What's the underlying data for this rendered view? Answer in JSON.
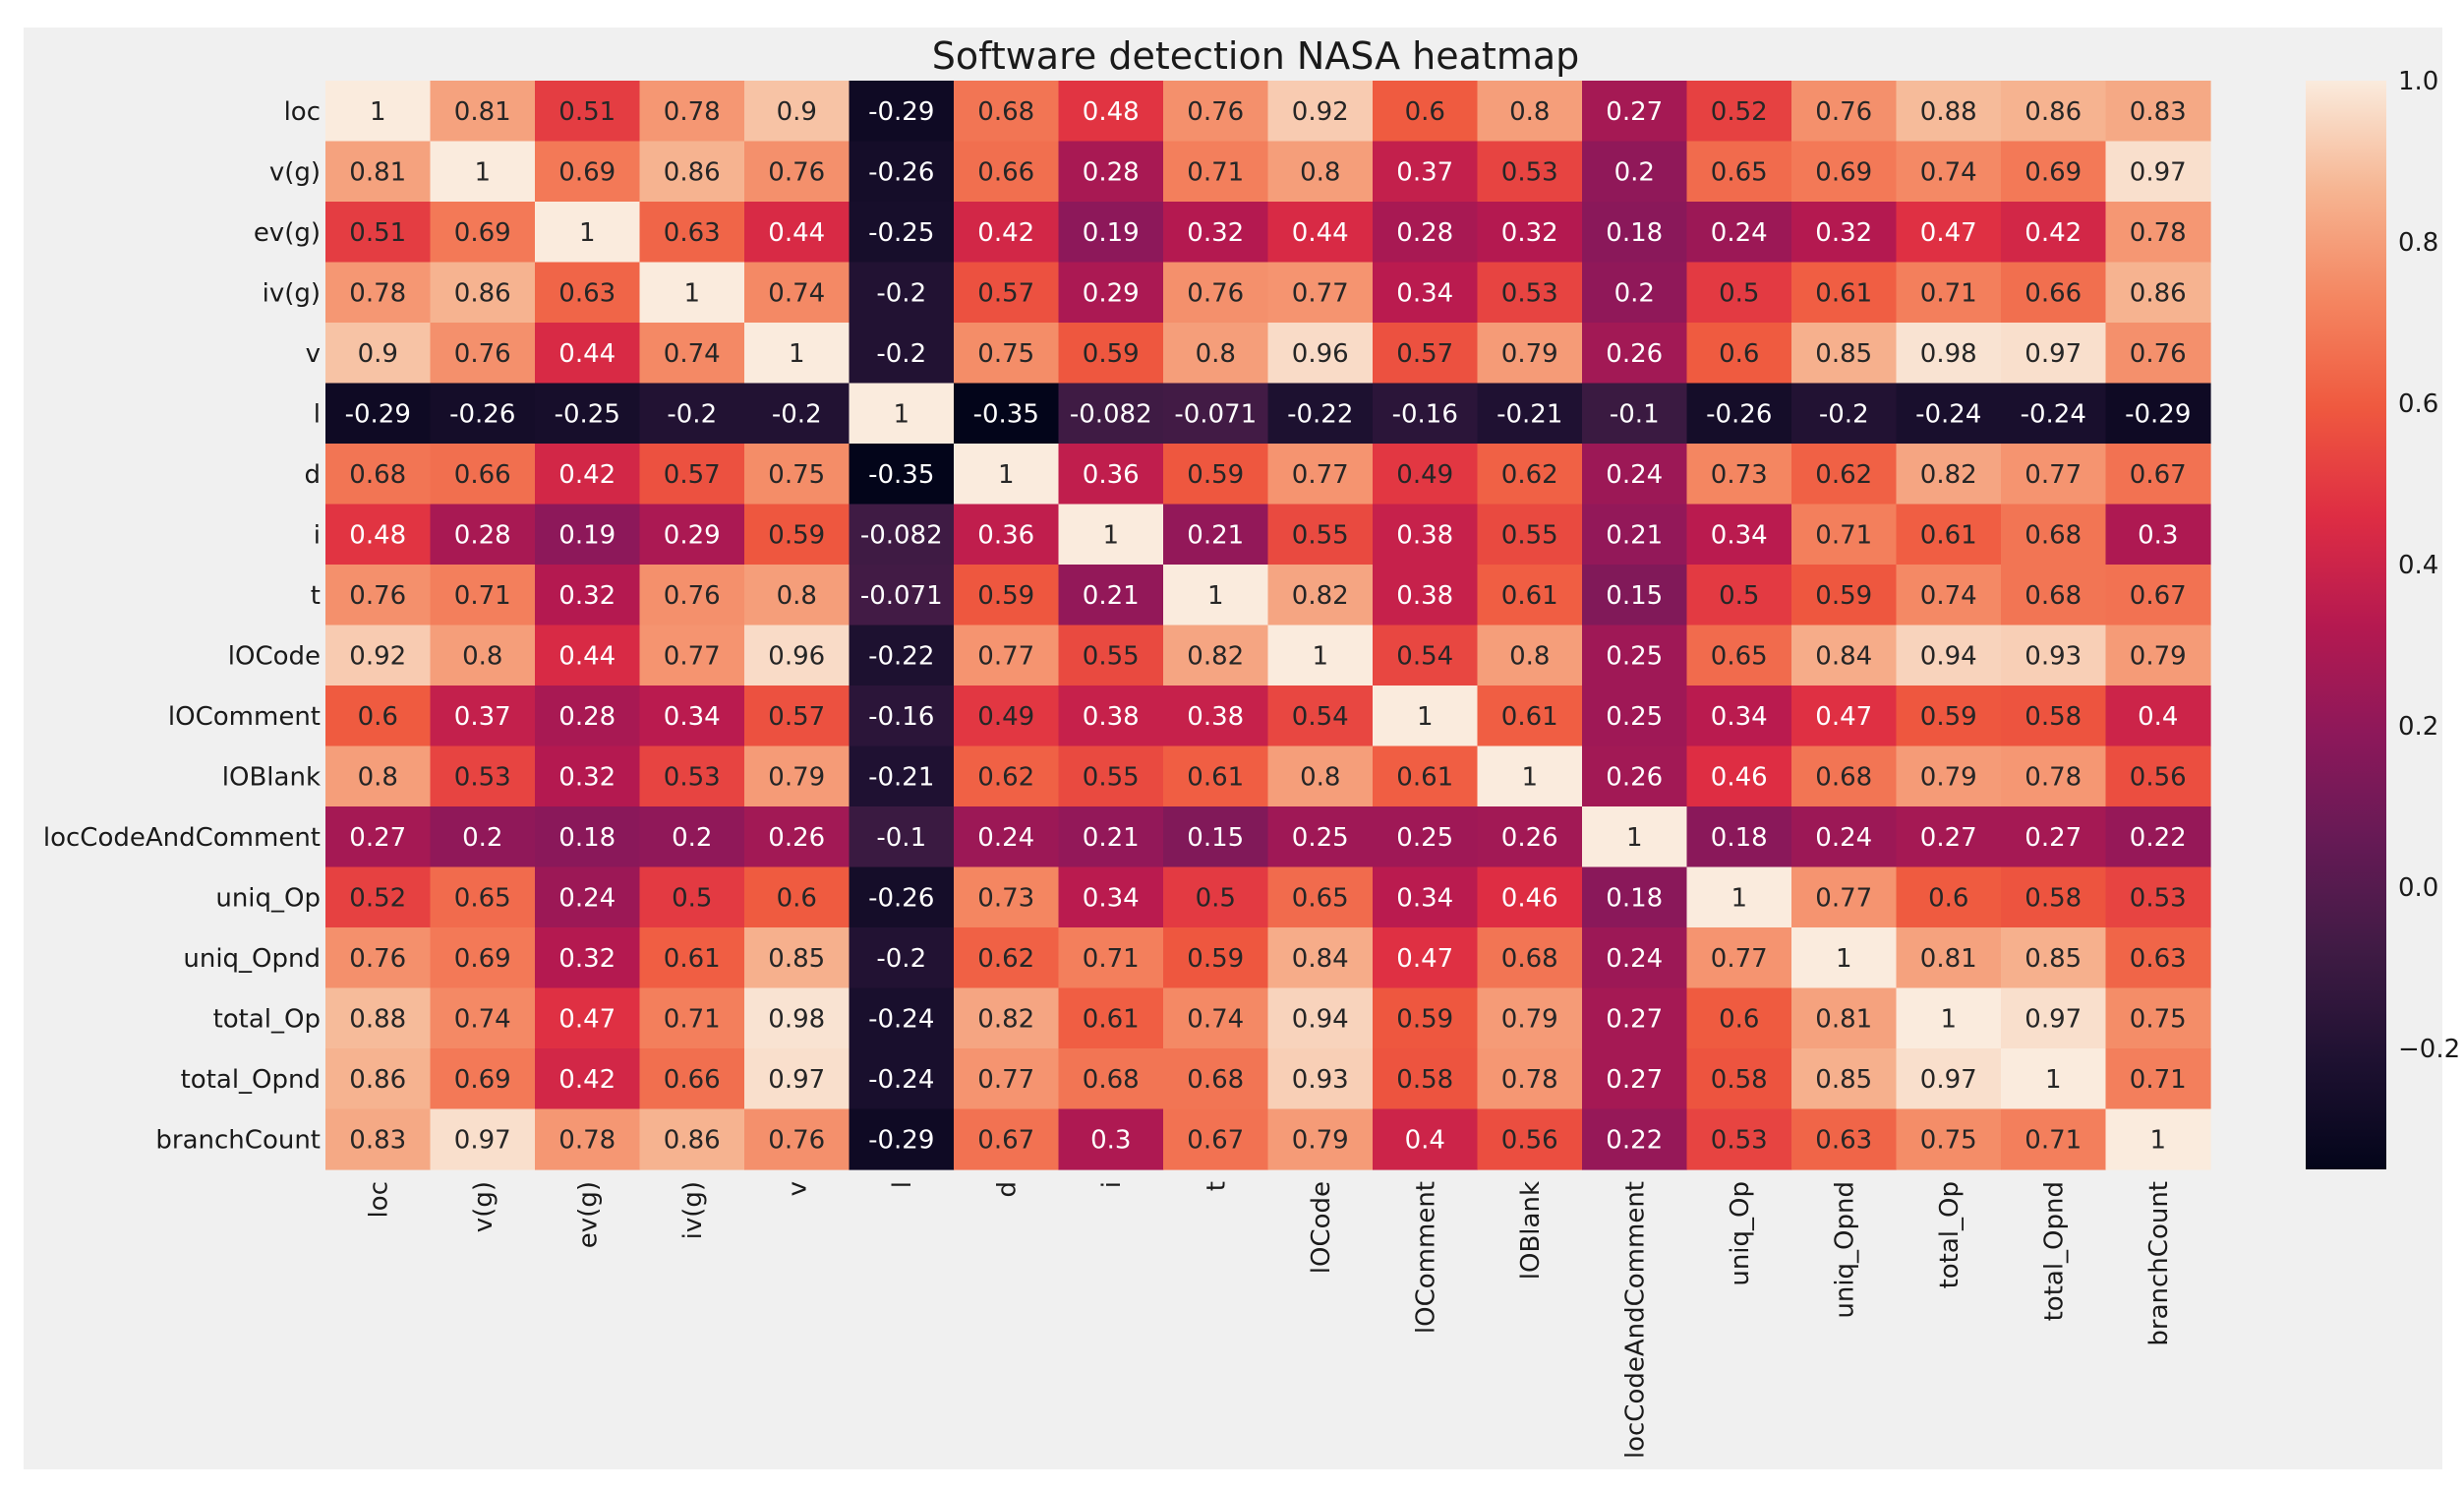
{
  "chart_data": {
    "type": "heatmap",
    "title": "Software detection NASA heatmap",
    "xlabel": "",
    "ylabel": "",
    "grid": false,
    "legend": "colorbar-right",
    "rows": [
      "loc",
      "v(g)",
      "ev(g)",
      "iv(g)",
      "v",
      "l",
      "d",
      "i",
      "t",
      "lOCode",
      "lOComment",
      "lOBlank",
      "locCodeAndComment",
      "uniq_Op",
      "uniq_Opnd",
      "total_Op",
      "total_Opnd",
      "branchCount"
    ],
    "columns": [
      "loc",
      "v(g)",
      "ev(g)",
      "iv(g)",
      "v",
      "l",
      "d",
      "i",
      "t",
      "lOCode",
      "lOComment",
      "lOBlank",
      "locCodeAndComment",
      "uniq_Op",
      "uniq_Opnd",
      "total_Op",
      "total_Opnd",
      "branchCount"
    ],
    "values": [
      [
        1,
        0.81,
        0.51,
        0.78,
        0.9,
        -0.29,
        0.68,
        0.48,
        0.76,
        0.92,
        0.6,
        0.8,
        0.27,
        0.52,
        0.76,
        0.88,
        0.86,
        0.83
      ],
      [
        0.81,
        1,
        0.69,
        0.86,
        0.76,
        -0.26,
        0.66,
        0.28,
        0.71,
        0.8,
        0.37,
        0.53,
        0.2,
        0.65,
        0.69,
        0.74,
        0.69,
        0.97
      ],
      [
        0.51,
        0.69,
        1,
        0.63,
        0.44,
        -0.25,
        0.42,
        0.19,
        0.32,
        0.44,
        0.28,
        0.32,
        0.18,
        0.24,
        0.32,
        0.47,
        0.42,
        0.78
      ],
      [
        0.78,
        0.86,
        0.63,
        1,
        0.74,
        -0.2,
        0.57,
        0.29,
        0.76,
        0.77,
        0.34,
        0.53,
        0.2,
        0.5,
        0.61,
        0.71,
        0.66,
        0.86
      ],
      [
        0.9,
        0.76,
        0.44,
        0.74,
        1,
        -0.2,
        0.75,
        0.59,
        0.8,
        0.96,
        0.57,
        0.79,
        0.26,
        0.6,
        0.85,
        0.98,
        0.97,
        0.76
      ],
      [
        -0.29,
        -0.26,
        -0.25,
        -0.2,
        -0.2,
        1,
        -0.35,
        -0.082,
        -0.071,
        -0.22,
        -0.16,
        -0.21,
        -0.1,
        -0.26,
        -0.2,
        -0.24,
        -0.24,
        -0.29
      ],
      [
        0.68,
        0.66,
        0.42,
        0.57,
        0.75,
        -0.35,
        1,
        0.36,
        0.59,
        0.77,
        0.49,
        0.62,
        0.24,
        0.73,
        0.62,
        0.82,
        0.77,
        0.67
      ],
      [
        0.48,
        0.28,
        0.19,
        0.29,
        0.59,
        -0.082,
        0.36,
        1,
        0.21,
        0.55,
        0.38,
        0.55,
        0.21,
        0.34,
        0.71,
        0.61,
        0.68,
        0.3
      ],
      [
        0.76,
        0.71,
        0.32,
        0.76,
        0.8,
        -0.071,
        0.59,
        0.21,
        1,
        0.82,
        0.38,
        0.61,
        0.15,
        0.5,
        0.59,
        0.74,
        0.68,
        0.67
      ],
      [
        0.92,
        0.8,
        0.44,
        0.77,
        0.96,
        -0.22,
        0.77,
        0.55,
        0.82,
        1,
        0.54,
        0.8,
        0.25,
        0.65,
        0.84,
        0.94,
        0.93,
        0.79
      ],
      [
        0.6,
        0.37,
        0.28,
        0.34,
        0.57,
        -0.16,
        0.49,
        0.38,
        0.38,
        0.54,
        1,
        0.61,
        0.25,
        0.34,
        0.47,
        0.59,
        0.58,
        0.4
      ],
      [
        0.8,
        0.53,
        0.32,
        0.53,
        0.79,
        -0.21,
        0.62,
        0.55,
        0.61,
        0.8,
        0.61,
        1,
        0.26,
        0.46,
        0.68,
        0.79,
        0.78,
        0.56
      ],
      [
        0.27,
        0.2,
        0.18,
        0.2,
        0.26,
        -0.1,
        0.24,
        0.21,
        0.15,
        0.25,
        0.25,
        0.26,
        1,
        0.18,
        0.24,
        0.27,
        0.27,
        0.22
      ],
      [
        0.52,
        0.65,
        0.24,
        0.5,
        0.6,
        -0.26,
        0.73,
        0.34,
        0.5,
        0.65,
        0.34,
        0.46,
        0.18,
        1,
        0.77,
        0.6,
        0.58,
        0.53
      ],
      [
        0.76,
        0.69,
        0.32,
        0.61,
        0.85,
        -0.2,
        0.62,
        0.71,
        0.59,
        0.84,
        0.47,
        0.68,
        0.24,
        0.77,
        1,
        0.81,
        0.85,
        0.63
      ],
      [
        0.88,
        0.74,
        0.47,
        0.71,
        0.98,
        -0.24,
        0.82,
        0.61,
        0.74,
        0.94,
        0.59,
        0.79,
        0.27,
        0.6,
        0.81,
        1,
        0.97,
        0.75
      ],
      [
        0.86,
        0.69,
        0.42,
        0.66,
        0.97,
        -0.24,
        0.77,
        0.68,
        0.68,
        0.93,
        0.58,
        0.78,
        0.27,
        0.58,
        0.85,
        0.97,
        1,
        0.71
      ],
      [
        0.83,
        0.97,
        0.78,
        0.86,
        0.76,
        -0.29,
        0.67,
        0.3,
        0.67,
        0.79,
        0.4,
        0.56,
        0.22,
        0.53,
        0.63,
        0.75,
        0.71,
        1
      ]
    ],
    "colorbar": {
      "range": [
        -0.35,
        1.0
      ],
      "ticks": [
        -0.2,
        0.0,
        0.2,
        0.4,
        0.6,
        0.8,
        1.0
      ],
      "tick_labels": [
        "−0.2",
        "0.0",
        "0.2",
        "0.4",
        "0.6",
        "0.8",
        "1.0"
      ],
      "colormap": "rocket"
    },
    "colors": {
      "figure_background": "#f0f0f0",
      "text_dark": "#262626",
      "text_light": "#ffffff"
    }
  }
}
